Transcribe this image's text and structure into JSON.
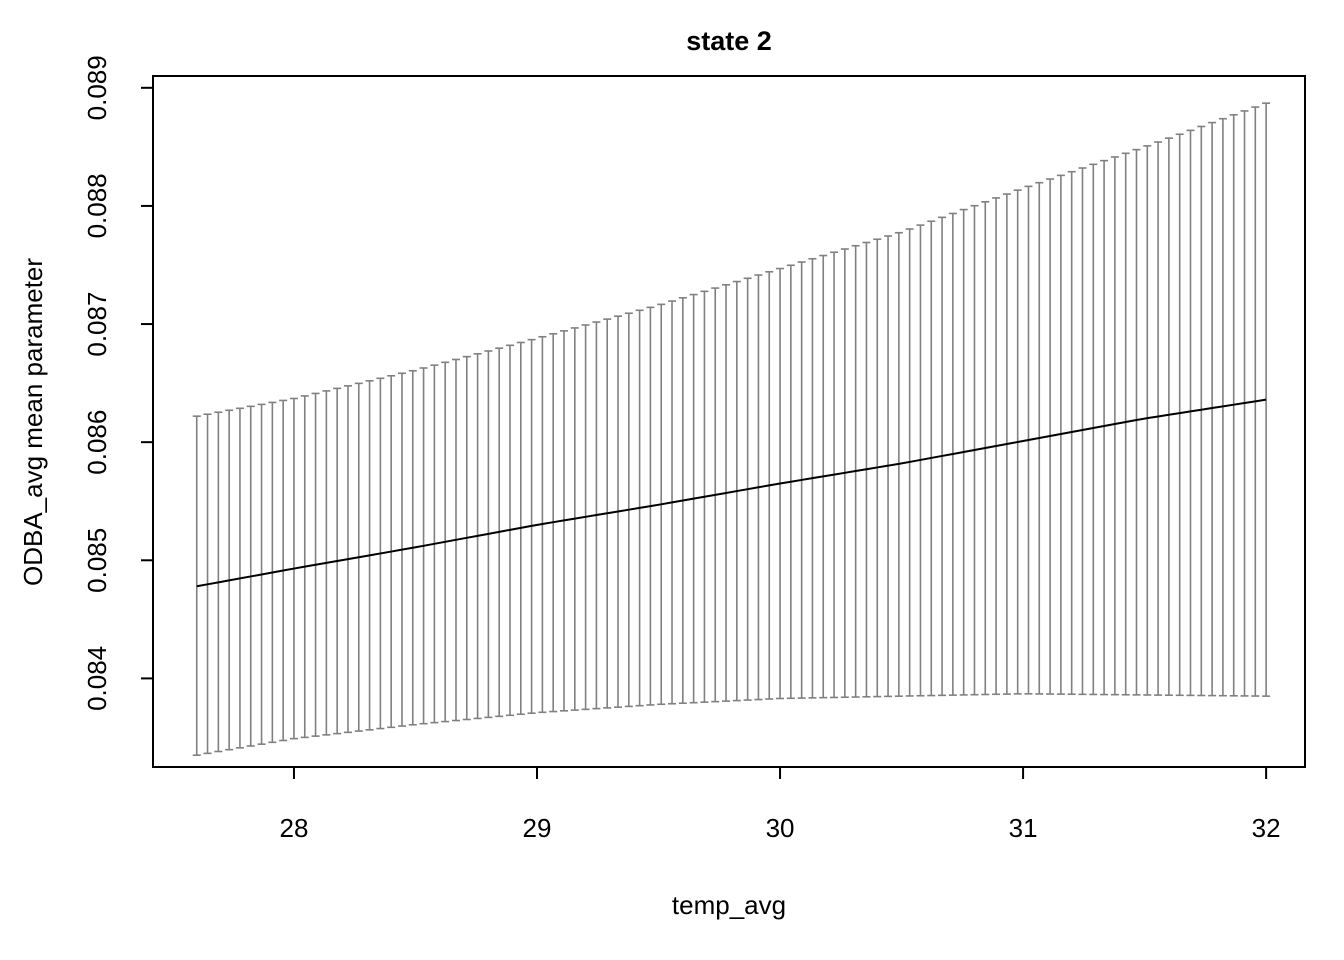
{
  "chart_data": {
    "type": "line",
    "title": "state 2",
    "xlabel": "temp_avg",
    "ylabel": "ODBA_avg mean parameter",
    "xlim": [
      27.42,
      32.16
    ],
    "ylim": [
      0.08325,
      0.0891
    ],
    "xticks": [
      28,
      29,
      30,
      31,
      32
    ],
    "xtick_labels": [
      "28",
      "29",
      "30",
      "31",
      "32"
    ],
    "yticks": [
      0.084,
      0.085,
      0.086,
      0.087,
      0.088,
      0.089
    ],
    "ytick_labels": [
      "0.084",
      "0.085",
      "0.086",
      "0.087",
      "0.088",
      "0.089"
    ],
    "grid": false,
    "legend": "none",
    "n_points": 100,
    "x_range": [
      27.6,
      32.0
    ],
    "mean": {
      "x": [
        27.6,
        28.0,
        28.5,
        29.0,
        29.5,
        30.0,
        30.5,
        31.0,
        31.5,
        32.0
      ],
      "y": [
        0.08478,
        0.08493,
        0.08511,
        0.0853,
        0.08547,
        0.08565,
        0.08582,
        0.08601,
        0.0862,
        0.08636
      ]
    },
    "upper": {
      "x": [
        27.6,
        28.0,
        28.5,
        29.0,
        29.5,
        30.0,
        30.5,
        31.0,
        31.5,
        32.0
      ],
      "y": [
        0.08622,
        0.08637,
        0.08661,
        0.08688,
        0.08716,
        0.08747,
        0.08778,
        0.08815,
        0.0885,
        0.08887
      ]
    },
    "lower": {
      "x": [
        27.6,
        28.0,
        28.5,
        29.0,
        29.5,
        30.0,
        30.5,
        31.0,
        31.5,
        32.0
      ],
      "y": [
        0.08335,
        0.08349,
        0.08361,
        0.08371,
        0.08378,
        0.08383,
        0.08385,
        0.08387,
        0.08386,
        0.08385
      ]
    },
    "colors": {
      "mean": "#000000",
      "error_bars": "#808080",
      "frame": "#000000"
    }
  }
}
